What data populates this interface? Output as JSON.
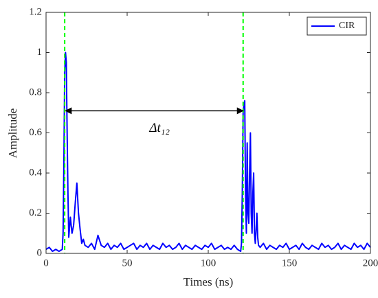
{
  "chart_data": {
    "type": "line",
    "x_label": "Times (ns)",
    "y_label": "Amplitude",
    "x": [
      0,
      2,
      4,
      6,
      8,
      10,
      10.5,
      11,
      11.5,
      12,
      12.5,
      13,
      13.5,
      14,
      15,
      16,
      17,
      18,
      19,
      20,
      21,
      22,
      23,
      24,
      26,
      28,
      30,
      32,
      34,
      36,
      38,
      40,
      42,
      44,
      46,
      48,
      50,
      52,
      54,
      56,
      58,
      60,
      62,
      64,
      66,
      68,
      70,
      72,
      74,
      76,
      78,
      80,
      82,
      84,
      86,
      88,
      90,
      92,
      94,
      96,
      98,
      100,
      102,
      104,
      106,
      108,
      110,
      112,
      114,
      116,
      118,
      120,
      120.5,
      121,
      121.5,
      122,
      122.5,
      123,
      123.5,
      124,
      124.5,
      125,
      125.5,
      126,
      126.5,
      127,
      127.5,
      128,
      128.5,
      129,
      129.5,
      130,
      130.5,
      131,
      132,
      134,
      136,
      138,
      140,
      142,
      144,
      146,
      148,
      150,
      152,
      154,
      156,
      158,
      160,
      162,
      164,
      166,
      168,
      170,
      172,
      174,
      176,
      178,
      180,
      182,
      184,
      186,
      188,
      190,
      192,
      194,
      196,
      198,
      200
    ],
    "series": [
      {
        "name": "CIR",
        "color": "#0000ff",
        "values": [
          0.02,
          0.03,
          0.01,
          0.02,
          0.01,
          0.02,
          0.1,
          0.45,
          0.9,
          1.0,
          0.95,
          0.6,
          0.3,
          0.08,
          0.18,
          0.1,
          0.14,
          0.25,
          0.35,
          0.2,
          0.12,
          0.05,
          0.07,
          0.04,
          0.03,
          0.05,
          0.02,
          0.09,
          0.04,
          0.03,
          0.05,
          0.02,
          0.04,
          0.03,
          0.05,
          0.02,
          0.03,
          0.04,
          0.05,
          0.02,
          0.04,
          0.03,
          0.05,
          0.02,
          0.04,
          0.03,
          0.02,
          0.05,
          0.03,
          0.04,
          0.02,
          0.03,
          0.05,
          0.02,
          0.04,
          0.03,
          0.02,
          0.04,
          0.03,
          0.02,
          0.04,
          0.03,
          0.05,
          0.02,
          0.03,
          0.04,
          0.02,
          0.03,
          0.02,
          0.04,
          0.02,
          0.01,
          0.05,
          0.3,
          0.7,
          0.74,
          0.76,
          0.3,
          0.1,
          0.55,
          0.2,
          0.15,
          0.4,
          0.6,
          0.2,
          0.1,
          0.3,
          0.4,
          0.1,
          0.05,
          0.12,
          0.2,
          0.08,
          0.04,
          0.03,
          0.05,
          0.02,
          0.04,
          0.03,
          0.02,
          0.04,
          0.03,
          0.05,
          0.02,
          0.03,
          0.04,
          0.02,
          0.05,
          0.03,
          0.02,
          0.04,
          0.03,
          0.02,
          0.05,
          0.03,
          0.04,
          0.02,
          0.03,
          0.05,
          0.02,
          0.04,
          0.03,
          0.02,
          0.05,
          0.03,
          0.04,
          0.02,
          0.05,
          0.03
        ]
      }
    ],
    "vlines": {
      "values": [
        11.5,
        121.5
      ],
      "color": "#00ff00"
    },
    "annotation": {
      "text": "Δt₁₂",
      "x": [
        12,
        121.5
      ],
      "y": 0.71,
      "label_x": 70,
      "label_y": 0.62
    },
    "xlim": [
      0,
      200
    ],
    "xticks": [
      0,
      50,
      100,
      150,
      200
    ],
    "ylim": [
      0,
      1.2
    ],
    "yticks": [
      0,
      0.2,
      0.4,
      0.6,
      0.8,
      1,
      1.2
    ],
    "legend": "northeast"
  }
}
